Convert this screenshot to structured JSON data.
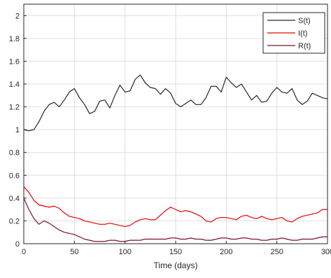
{
  "chart_data": {
    "type": "line",
    "xlabel": "Time (days)",
    "ylabel": "",
    "xlim": [
      0,
      300
    ],
    "ylim": [
      0,
      2.1
    ],
    "xticks": [
      0,
      50,
      100,
      150,
      200,
      250,
      300
    ],
    "xtick_labels": [
      "0",
      "50",
      "100",
      "150",
      "200",
      "250",
      "300"
    ],
    "yticks": [
      0,
      0.2,
      0.4,
      0.6,
      0.8,
      1,
      1.2,
      1.4,
      1.6,
      1.8,
      2
    ],
    "ytick_labels": [
      "0",
      "0.2",
      "0.4",
      "0.6",
      "0.8",
      "1",
      "1.2",
      "1.4",
      "1.6",
      "1.8",
      "2"
    ],
    "grid": true,
    "legend_position": "top-right",
    "series": [
      {
        "name": "S(t)",
        "color": "#262626",
        "x": [
          0,
          5,
          10,
          15,
          20,
          25,
          30,
          35,
          40,
          45,
          50,
          55,
          60,
          65,
          70,
          75,
          80,
          85,
          90,
          95,
          100,
          105,
          110,
          115,
          120,
          125,
          130,
          135,
          140,
          145,
          150,
          155,
          160,
          165,
          170,
          175,
          180,
          185,
          190,
          195,
          200,
          205,
          210,
          215,
          220,
          225,
          230,
          235,
          240,
          245,
          250,
          255,
          260,
          265,
          270,
          275,
          280,
          285,
          290,
          295,
          300
        ],
        "y": [
          1.0,
          0.99,
          1.0,
          1.07,
          1.16,
          1.22,
          1.24,
          1.2,
          1.26,
          1.33,
          1.36,
          1.28,
          1.22,
          1.14,
          1.16,
          1.25,
          1.26,
          1.19,
          1.3,
          1.39,
          1.33,
          1.34,
          1.44,
          1.48,
          1.41,
          1.37,
          1.36,
          1.31,
          1.36,
          1.32,
          1.23,
          1.2,
          1.23,
          1.26,
          1.22,
          1.22,
          1.28,
          1.38,
          1.38,
          1.33,
          1.46,
          1.41,
          1.37,
          1.4,
          1.33,
          1.26,
          1.3,
          1.24,
          1.25,
          1.32,
          1.37,
          1.33,
          1.32,
          1.36,
          1.26,
          1.22,
          1.25,
          1.32,
          1.3,
          1.28,
          1.27
        ]
      },
      {
        "name": "I(t)",
        "color": "#e60000",
        "x": [
          0,
          5,
          10,
          15,
          20,
          25,
          30,
          35,
          40,
          45,
          50,
          55,
          60,
          65,
          70,
          75,
          80,
          85,
          90,
          95,
          100,
          105,
          110,
          115,
          120,
          125,
          130,
          135,
          140,
          145,
          150,
          155,
          160,
          165,
          170,
          175,
          180,
          185,
          190,
          195,
          200,
          205,
          210,
          215,
          220,
          225,
          230,
          235,
          240,
          245,
          250,
          255,
          260,
          265,
          270,
          275,
          280,
          285,
          290,
          295,
          300
        ],
        "y": [
          0.5,
          0.45,
          0.38,
          0.34,
          0.33,
          0.32,
          0.33,
          0.31,
          0.27,
          0.24,
          0.23,
          0.22,
          0.2,
          0.19,
          0.18,
          0.17,
          0.17,
          0.18,
          0.17,
          0.16,
          0.15,
          0.16,
          0.19,
          0.21,
          0.22,
          0.21,
          0.21,
          0.25,
          0.29,
          0.32,
          0.3,
          0.28,
          0.29,
          0.28,
          0.26,
          0.24,
          0.2,
          0.19,
          0.22,
          0.23,
          0.23,
          0.22,
          0.21,
          0.24,
          0.25,
          0.23,
          0.22,
          0.24,
          0.22,
          0.21,
          0.22,
          0.23,
          0.2,
          0.19,
          0.22,
          0.24,
          0.25,
          0.26,
          0.27,
          0.3,
          0.3
        ]
      },
      {
        "name": "R(t)",
        "color": "#7a1038",
        "x": [
          0,
          5,
          10,
          15,
          20,
          25,
          30,
          35,
          40,
          45,
          50,
          55,
          60,
          65,
          70,
          75,
          80,
          85,
          90,
          95,
          100,
          105,
          110,
          115,
          120,
          125,
          130,
          135,
          140,
          145,
          150,
          155,
          160,
          165,
          170,
          175,
          180,
          185,
          190,
          195,
          200,
          205,
          210,
          215,
          220,
          225,
          230,
          235,
          240,
          245,
          250,
          255,
          260,
          265,
          270,
          275,
          280,
          285,
          290,
          295,
          300
        ],
        "y": [
          0.4,
          0.3,
          0.22,
          0.17,
          0.2,
          0.18,
          0.15,
          0.12,
          0.1,
          0.09,
          0.08,
          0.06,
          0.04,
          0.03,
          0.02,
          0.02,
          0.02,
          0.03,
          0.03,
          0.02,
          0.02,
          0.03,
          0.03,
          0.03,
          0.04,
          0.04,
          0.04,
          0.04,
          0.04,
          0.05,
          0.05,
          0.04,
          0.04,
          0.05,
          0.04,
          0.04,
          0.03,
          0.03,
          0.04,
          0.05,
          0.05,
          0.04,
          0.04,
          0.05,
          0.05,
          0.04,
          0.04,
          0.03,
          0.03,
          0.04,
          0.04,
          0.05,
          0.04,
          0.03,
          0.03,
          0.04,
          0.04,
          0.04,
          0.05,
          0.06,
          0.06
        ]
      }
    ]
  }
}
